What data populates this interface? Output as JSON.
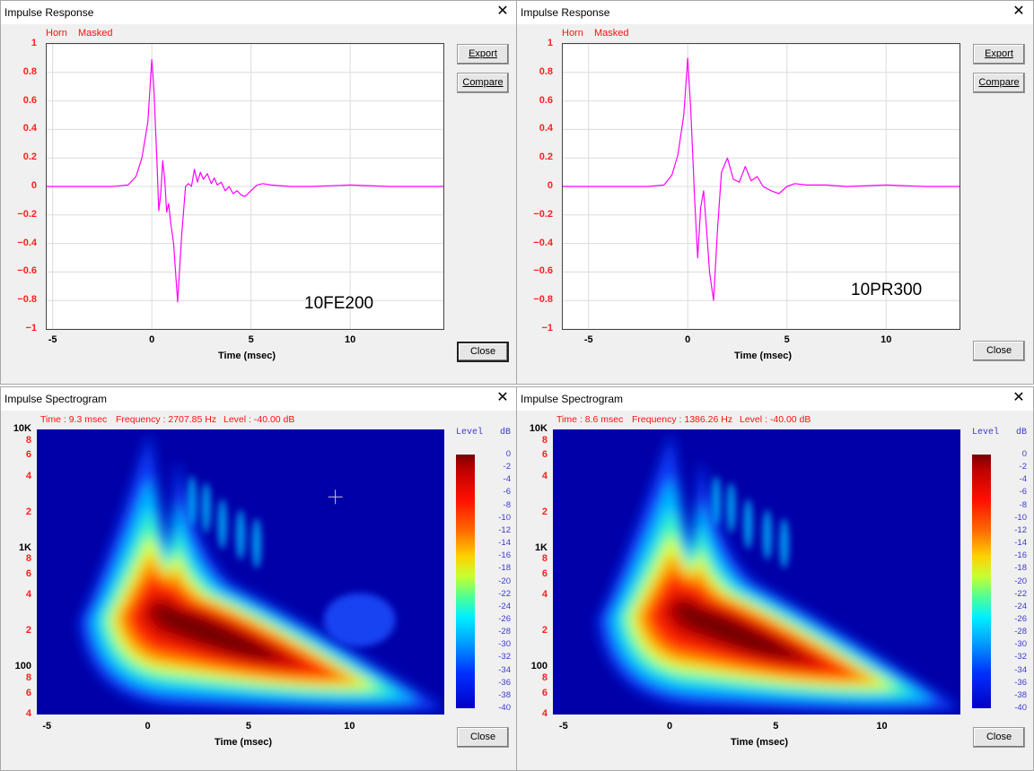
{
  "impulse_left": {
    "title": "Impulse Response",
    "close_x": "✕",
    "tag1": "Horn",
    "tag2": "Masked",
    "export": "Export",
    "compare": "Compare",
    "close": "Close",
    "model": "10FE200",
    "xlabel": "Time (msec)"
  },
  "impulse_right": {
    "title": "Impulse Response",
    "close_x": "✕",
    "tag1": "Horn",
    "tag2": "Masked",
    "export": "Export",
    "compare": "Compare",
    "close": "Close",
    "model": "10PR300",
    "xlabel": "Time (msec)"
  },
  "spec_left": {
    "title": "Impulse Spectrogram",
    "close_x": "✕",
    "time": "Time : 9.3 msec",
    "freq": "Frequency : 2707.85 Hz",
    "level": "Level : -40.00 dB",
    "close": "Close",
    "xlabel": "Time (msec)",
    "level_head": "Level",
    "db_head": "dB"
  },
  "spec_right": {
    "title": "Impulse Spectrogram",
    "close_x": "✕",
    "time": "Time : 8.6 msec",
    "freq": "Frequency : 1386.26 Hz",
    "level": "Level : -40.00 dB",
    "close": "Close",
    "xlabel": "Time (msec)",
    "level_head": "Level",
    "db_head": "dB"
  },
  "impulse_yticks": [
    "1",
    "0.8",
    "0.6",
    "0.4",
    "0.2",
    "0",
    "−0.2",
    "−0.4",
    "−0.6",
    "−0.8",
    "−1"
  ],
  "impulse_xticks": [
    "-5",
    "0",
    "5",
    "10"
  ],
  "spec_yticks": [
    "10K",
    "8",
    "6",
    "4",
    "2",
    "1K",
    "8",
    "6",
    "4",
    "2",
    "100",
    "8",
    "6",
    "4"
  ],
  "spec_xticks": [
    "-5",
    "0",
    "5",
    "10"
  ],
  "colorbar_ticks": [
    "0",
    "-2",
    "-4",
    "-6",
    "-8",
    "-10",
    "-12",
    "-14",
    "-16",
    "-18",
    "-20",
    "-22",
    "-24",
    "-26",
    "-28",
    "-30",
    "-32",
    "-34",
    "-36",
    "-38",
    "-40"
  ],
  "chart_data": [
    {
      "type": "line",
      "title": "Impulse Response",
      "xlabel": "Time (msec)",
      "ylabel": "",
      "xlim": [
        -5.3,
        14.7
      ],
      "ylim": [
        -1,
        1
      ],
      "series": [
        {
          "name": "10FE200",
          "color": "#ff00ff",
          "x": [
            -5.3,
            -2,
            -1.2,
            -0.8,
            -0.5,
            -0.2,
            0,
            0.1,
            0.25,
            0.35,
            0.45,
            0.55,
            0.65,
            0.75,
            0.85,
            0.95,
            1.1,
            1.3,
            1.5,
            1.7,
            1.85,
            2,
            2.15,
            2.3,
            2.45,
            2.6,
            2.8,
            3,
            3.15,
            3.3,
            3.5,
            3.7,
            3.9,
            4.1,
            4.3,
            4.5,
            4.7,
            5,
            5.3,
            5.6,
            6,
            7,
            8,
            10,
            12,
            14.7
          ],
          "y": [
            0,
            0,
            0.01,
            0.07,
            0.2,
            0.45,
            0.89,
            0.7,
            0.2,
            -0.17,
            -0.05,
            0.18,
            0.05,
            -0.18,
            -0.12,
            -0.25,
            -0.4,
            -0.81,
            -0.35,
            0.0,
            0.02,
            0.0,
            0.12,
            0.03,
            0.1,
            0.05,
            0.09,
            0.02,
            0.06,
            0.01,
            0.03,
            -0.03,
            0.0,
            -0.05,
            -0.03,
            -0.06,
            -0.07,
            -0.03,
            0.01,
            0.02,
            0.01,
            0.0,
            0.0,
            0.01,
            0.0,
            0.0
          ]
        }
      ]
    },
    {
      "type": "line",
      "title": "Impulse Response",
      "xlabel": "Time (msec)",
      "ylabel": "",
      "xlim": [
        -6.3,
        13.7
      ],
      "ylim": [
        -1,
        1
      ],
      "series": [
        {
          "name": "10PR300",
          "color": "#ff00ff",
          "x": [
            -6.3,
            -2,
            -1.2,
            -0.8,
            -0.5,
            -0.2,
            0,
            0.15,
            0.35,
            0.5,
            0.65,
            0.8,
            0.95,
            1.1,
            1.3,
            1.5,
            1.7,
            2,
            2.3,
            2.6,
            2.9,
            3.2,
            3.5,
            3.8,
            4.2,
            4.6,
            5,
            5.4,
            6,
            7,
            8,
            10,
            12,
            13.7
          ],
          "y": [
            0,
            0,
            0.01,
            0.08,
            0.22,
            0.5,
            0.9,
            0.55,
            -0.1,
            -0.5,
            -0.15,
            -0.03,
            -0.3,
            -0.6,
            -0.8,
            -0.3,
            0.1,
            0.2,
            0.05,
            0.03,
            0.14,
            0.04,
            0.07,
            0.0,
            -0.03,
            -0.05,
            0.0,
            0.02,
            0.01,
            0.01,
            0.0,
            0.01,
            0.0,
            0.0
          ]
        }
      ]
    },
    {
      "type": "heatmap",
      "title": "Impulse Spectrogram",
      "xlabel": "Time (msec)",
      "ylabel": "",
      "xlim": [
        -5.5,
        14.7
      ],
      "ylim": [
        40,
        10000
      ],
      "yscale": "log",
      "colorbar": {
        "label": "Level dB",
        "range": [
          -40,
          0
        ]
      },
      "cursor": {
        "time_msec": 9.3,
        "frequency_hz": 2707.85,
        "level_db": -40.0
      },
      "peak": {
        "time_msec": 0.7,
        "frequency_hz": 290,
        "level_db": 0
      }
    },
    {
      "type": "heatmap",
      "title": "Impulse Spectrogram",
      "xlabel": "Time (msec)",
      "ylabel": "",
      "xlim": [
        -5.5,
        13.7
      ],
      "ylim": [
        40,
        10000
      ],
      "yscale": "log",
      "colorbar": {
        "label": "Level dB",
        "range": [
          -40,
          0
        ]
      },
      "cursor": {
        "time_msec": 8.6,
        "frequency_hz": 1386.26,
        "level_db": -40.0
      },
      "peak": {
        "time_msec": 0.7,
        "frequency_hz": 300,
        "level_db": 0
      }
    }
  ]
}
